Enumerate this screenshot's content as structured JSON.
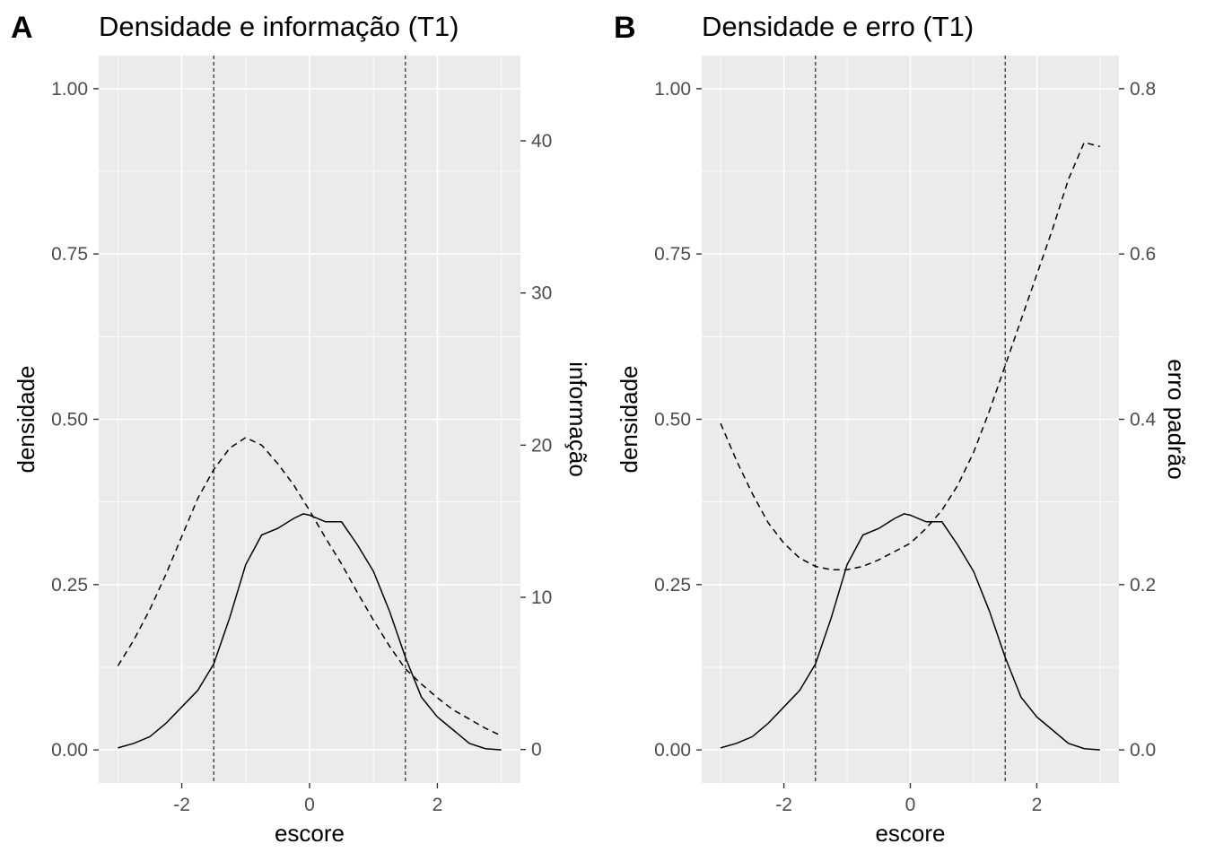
{
  "chart_data": [
    {
      "type": "line",
      "tag": "A",
      "title": "Densidade e informação (T1)",
      "xlabel": "escore",
      "ylabel": "densidade",
      "ylabel_secondary": "informação",
      "xlim": [
        -3.3,
        3.3
      ],
      "ylim": [
        -0.05,
        1.05
      ],
      "ylim_secondary": [
        -2.2,
        45.6
      ],
      "xticks": [
        -2,
        0,
        2
      ],
      "xtick_labels": [
        "-2",
        "0",
        "2"
      ],
      "yticks": [
        0,
        0.25,
        0.5,
        0.75,
        1
      ],
      "ytick_labels": [
        "0.00",
        "0.25",
        "0.50",
        "0.75",
        "1.00"
      ],
      "yticks_secondary": [
        0,
        10,
        20,
        30,
        40
      ],
      "ytick_labels_secondary": [
        "0",
        "10",
        "20",
        "30",
        "40"
      ],
      "vlines": [
        -1.5,
        1.5
      ],
      "grid": true,
      "legend": "none",
      "series": [
        {
          "role": "density",
          "axis": "primary",
          "line_style": "solid",
          "x": [
            -3.0,
            -2.75,
            -2.5,
            -2.25,
            -2.0,
            -1.75,
            -1.5,
            -1.25,
            -1.0,
            -0.75,
            -0.5,
            -0.25,
            -0.1,
            0.0,
            0.25,
            0.5,
            0.75,
            1.0,
            1.25,
            1.5,
            1.75,
            2.0,
            2.25,
            2.5,
            2.75,
            3.0
          ],
          "values": [
            0.003,
            0.01,
            0.02,
            0.04,
            0.065,
            0.09,
            0.13,
            0.2,
            0.28,
            0.325,
            0.335,
            0.35,
            0.357,
            0.355,
            0.345,
            0.345,
            0.31,
            0.27,
            0.21,
            0.14,
            0.08,
            0.05,
            0.03,
            0.01,
            0.002,
            0.0
          ]
        },
        {
          "role": "informação",
          "axis": "secondary",
          "line_style": "dashed",
          "x": [
            -3.0,
            -2.75,
            -2.5,
            -2.25,
            -2.0,
            -1.75,
            -1.5,
            -1.25,
            -1.0,
            -0.75,
            -0.5,
            -0.25,
            0.0,
            0.25,
            0.5,
            0.75,
            1.0,
            1.25,
            1.5,
            1.75,
            2.0,
            2.25,
            2.5,
            2.75,
            3.0
          ],
          "values": [
            5.5,
            7.2,
            9.2,
            11.5,
            14.0,
            16.5,
            18.4,
            19.8,
            20.5,
            20.0,
            18.8,
            17.4,
            15.7,
            13.9,
            12.2,
            10.3,
            8.5,
            6.8,
            5.3,
            4.3,
            3.4,
            2.6,
            2.0,
            1.4,
            0.9
          ]
        }
      ]
    },
    {
      "type": "line",
      "tag": "B",
      "title": "Densidade e erro (T1)",
      "xlabel": "escore",
      "ylabel": "densidade",
      "ylabel_secondary": "erro padrão",
      "xlim": [
        -3.3,
        3.3
      ],
      "ylim": [
        -0.05,
        1.05
      ],
      "ylim_secondary": [
        -0.04,
        0.84
      ],
      "xticks": [
        -2,
        0,
        2
      ],
      "xtick_labels": [
        "-2",
        "0",
        "2"
      ],
      "yticks": [
        0,
        0.25,
        0.5,
        0.75,
        1
      ],
      "ytick_labels": [
        "0.00",
        "0.25",
        "0.50",
        "0.75",
        "1.00"
      ],
      "yticks_secondary": [
        0,
        0.2,
        0.4,
        0.6,
        0.8
      ],
      "ytick_labels_secondary": [
        "0.0",
        "0.2",
        "0.4",
        "0.6",
        "0.8"
      ],
      "vlines": [
        -1.5,
        1.5
      ],
      "grid": true,
      "legend": "none",
      "series": [
        {
          "role": "density",
          "axis": "primary",
          "line_style": "solid",
          "x": [
            -3.0,
            -2.75,
            -2.5,
            -2.25,
            -2.0,
            -1.75,
            -1.5,
            -1.25,
            -1.0,
            -0.75,
            -0.5,
            -0.25,
            -0.1,
            0.0,
            0.25,
            0.5,
            0.75,
            1.0,
            1.25,
            1.5,
            1.75,
            2.0,
            2.25,
            2.5,
            2.75,
            3.0
          ],
          "values": [
            0.003,
            0.01,
            0.02,
            0.04,
            0.065,
            0.09,
            0.13,
            0.2,
            0.28,
            0.325,
            0.335,
            0.35,
            0.357,
            0.355,
            0.345,
            0.345,
            0.31,
            0.27,
            0.21,
            0.14,
            0.08,
            0.05,
            0.03,
            0.01,
            0.002,
            0.0
          ]
        },
        {
          "role": "erro padrão",
          "axis": "secondary",
          "line_style": "dashed",
          "x": [
            -3.0,
            -2.75,
            -2.5,
            -2.25,
            -2.0,
            -1.75,
            -1.5,
            -1.25,
            -1.0,
            -0.75,
            -0.5,
            -0.25,
            0.0,
            0.25,
            0.5,
            0.75,
            1.0,
            1.25,
            1.5,
            1.75,
            2.0,
            2.25,
            2.5,
            2.75,
            3.0
          ],
          "values": [
            0.395,
            0.35,
            0.31,
            0.275,
            0.25,
            0.232,
            0.222,
            0.218,
            0.218,
            0.222,
            0.23,
            0.24,
            0.25,
            0.268,
            0.29,
            0.32,
            0.36,
            0.41,
            0.465,
            0.52,
            0.575,
            0.63,
            0.69,
            0.735,
            0.73
          ]
        }
      ]
    }
  ]
}
